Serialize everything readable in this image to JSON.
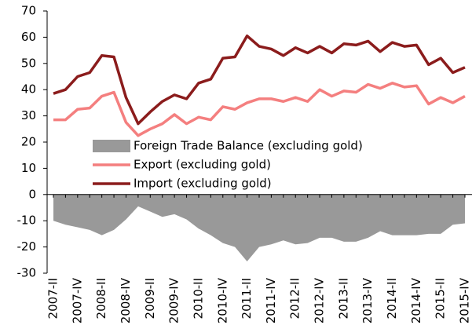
{
  "chart_data": {
    "type": "line",
    "categories": [
      "2007-II",
      null,
      "2007-IV",
      null,
      "2008-II",
      null,
      "2008-IV",
      null,
      "2009-II",
      null,
      "2009-IV",
      null,
      "2010-II",
      null,
      "2010-IV",
      null,
      "2011-II",
      null,
      "2011-IV",
      null,
      "2012-II",
      null,
      "2012-IV",
      null,
      "2013-II",
      null,
      "2013-IV",
      null,
      "2014-II",
      null,
      "2014-IV",
      null,
      "2015-II",
      null,
      "2015-IV"
    ],
    "series": [
      {
        "name": "Foreign Trade Balance (excluding gold)",
        "color": "#999999",
        "style": "area",
        "values": [
          -10,
          -11.5,
          -12.5,
          -13.5,
          -15.5,
          -13.5,
          -9.5,
          -4.5,
          -6.5,
          -8.5,
          -7.5,
          -9.5,
          -13,
          -15.5,
          -18.5,
          -20,
          -25.5,
          -20,
          -19,
          -17.5,
          -19,
          -18.5,
          -16.5,
          -16.5,
          -18,
          -18,
          -16.5,
          -14,
          -15.5,
          -15.5,
          -15.5,
          -15,
          -15,
          -11.5,
          -11
        ]
      },
      {
        "name": "Export (excluding gold)",
        "color": "#f47f7f",
        "style": "line",
        "values": [
          28.5,
          28.5,
          32.5,
          33,
          37.5,
          39,
          27.5,
          22.5,
          25,
          27,
          30.5,
          27,
          29.5,
          28.5,
          33.5,
          32.5,
          35,
          36.5,
          36.5,
          35.5,
          37,
          35.5,
          40,
          37.5,
          39.5,
          39,
          42,
          40.5,
          42.5,
          41,
          41.5,
          34.5,
          37,
          35,
          37.5
        ]
      },
      {
        "name": "Import (excluding gold)",
        "color": "#8b1c1c",
        "style": "line",
        "values": [
          38.5,
          40,
          45,
          46.5,
          53,
          52.5,
          37,
          27,
          31.5,
          35.5,
          38,
          36.5,
          42.5,
          44,
          52,
          52.5,
          60.5,
          56.5,
          55.5,
          53,
          56,
          54,
          56.5,
          54,
          57.5,
          57,
          58.5,
          54.5,
          58,
          56.5,
          57,
          49.5,
          52,
          46.5,
          48.5
        ]
      }
    ],
    "ylim": [
      -30,
      70
    ],
    "yticks": [
      -30,
      -20,
      -10,
      0,
      10,
      20,
      30,
      40,
      50,
      60,
      70
    ]
  }
}
